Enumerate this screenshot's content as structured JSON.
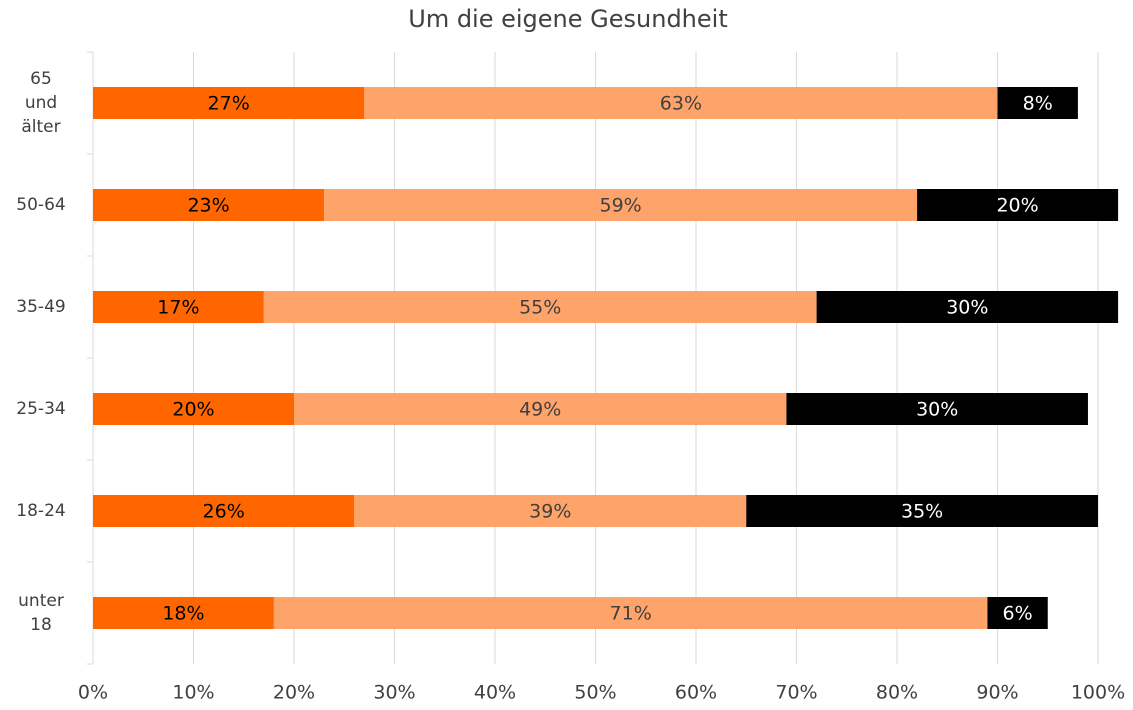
{
  "chart_data": {
    "type": "stacked_bar_horizontal",
    "title": "Um die eigene Gesundheit",
    "categories": [
      "65 und älter",
      "50-64",
      "35-49",
      "25-34",
      "18-24",
      "unter 18"
    ],
    "series": [
      {
        "color": "#ff6600",
        "label_color": "#000000",
        "values": [
          27,
          23,
          17,
          20,
          26,
          18
        ],
        "value_labels": [
          "27%",
          "23%",
          "17%",
          "20%",
          "26%",
          "18%"
        ]
      },
      {
        "color": "#fea46a",
        "label_color": "#404040",
        "values": [
          63,
          59,
          55,
          49,
          39,
          71
        ],
        "value_labels": [
          "63%",
          "59%",
          "55%",
          "49%",
          "39%",
          "71%"
        ]
      },
      {
        "color": "#000000",
        "label_color": "#ffffff",
        "values": [
          8,
          20,
          30,
          30,
          35,
          6
        ],
        "value_labels": [
          "8%",
          "20%",
          "30%",
          "30%",
          "35%",
          "6%"
        ]
      }
    ],
    "xlim": [
      0,
      100
    ],
    "xticks": [
      {
        "value": 0,
        "label": "0%"
      },
      {
        "value": 10,
        "label": "10%"
      },
      {
        "value": 20,
        "label": "20%"
      },
      {
        "value": 30,
        "label": "30%"
      },
      {
        "value": 40,
        "label": "40%"
      },
      {
        "value": 50,
        "label": "50%"
      },
      {
        "value": 60,
        "label": "60%"
      },
      {
        "value": 70,
        "label": "70%"
      },
      {
        "value": 80,
        "label": "80%"
      },
      {
        "value": 90,
        "label": "90%"
      },
      {
        "value": 100,
        "label": "100%"
      }
    ],
    "grid": true
  }
}
